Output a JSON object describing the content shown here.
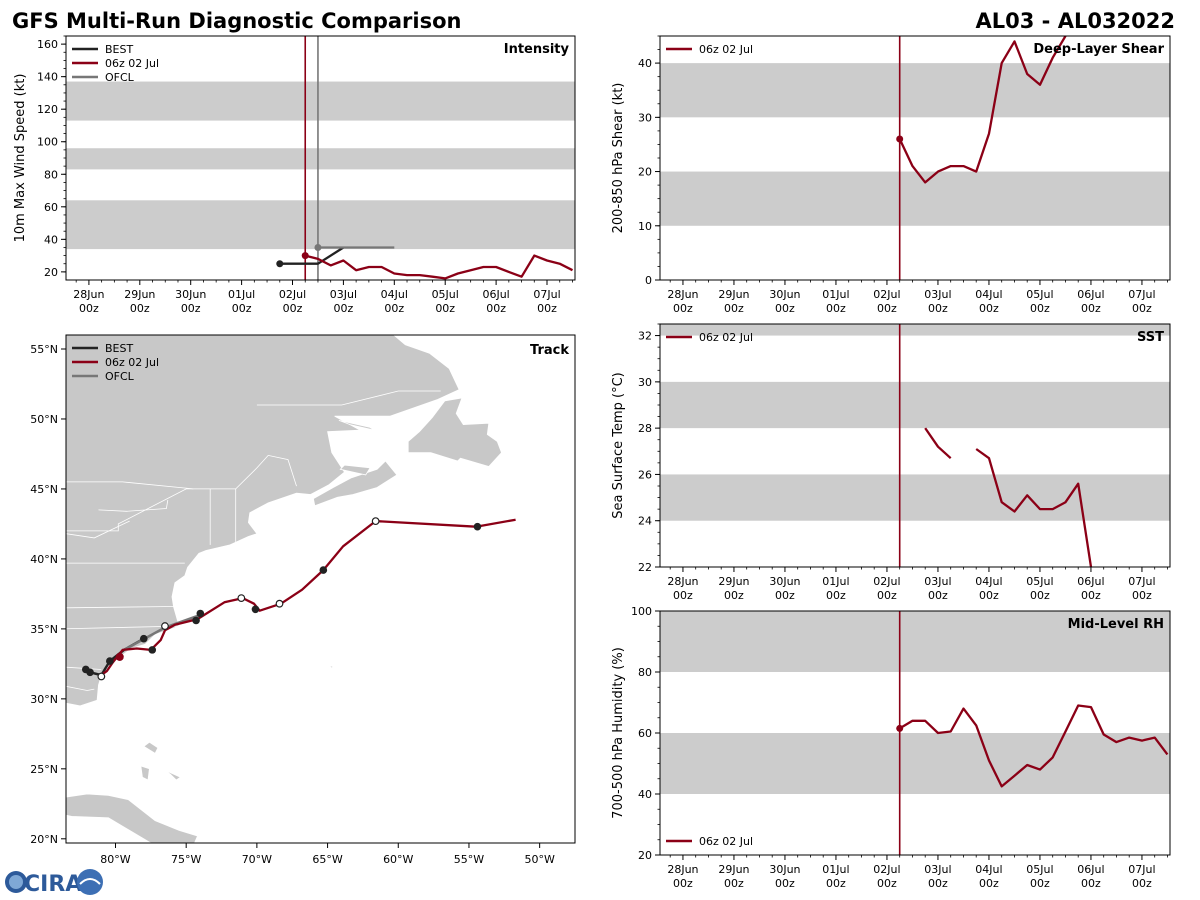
{
  "header": {
    "title": "GFS Multi-Run Diagnostic Comparison",
    "storm_id": "AL03 - AL032022"
  },
  "logo": {
    "text": "CIRA"
  },
  "colors": {
    "best": "#222222",
    "run": "#8b0016",
    "ofcl": "#777777",
    "band": "#cccccc",
    "land": "#c8c8c8"
  },
  "time_ticks": [
    "28Jun",
    "29Jun",
    "30Jun",
    "01Jul",
    "02Jul",
    "03Jul",
    "04Jul",
    "05Jul",
    "06Jul",
    "07Jul"
  ],
  "time_tick_hour": "00z",
  "chart_data": [
    {
      "id": "intensity",
      "type": "line",
      "title": "Intensity",
      "ylabel": "10m Max Wind Speed (kt)",
      "xlabel": "",
      "x_units": "days since 28Jun 00z",
      "xlim": [
        -0.45,
        9.55
      ],
      "ylim": [
        15,
        165
      ],
      "yticks": [
        20,
        40,
        60,
        80,
        100,
        120,
        140,
        160
      ],
      "bands": [
        [
          34,
          64
        ],
        [
          83,
          96
        ],
        [
          113,
          137
        ]
      ],
      "vlines": [
        {
          "x": 4.25,
          "series": "06z 02 Jul"
        },
        {
          "x": 4.5,
          "series": "OFCL"
        }
      ],
      "legend": [
        "BEST",
        "06z 02 Jul",
        "OFCL"
      ],
      "legend_position": "top-left",
      "series": [
        {
          "name": "BEST",
          "x": [
            3.75,
            4.5,
            5.0
          ],
          "y": [
            25,
            25,
            35
          ]
        },
        {
          "name": "OFCL",
          "x": [
            4.5,
            6.0
          ],
          "y": [
            35,
            35
          ]
        },
        {
          "name": "06z 02 Jul",
          "x": [
            4.25,
            4.5,
            4.75,
            5.0,
            5.25,
            5.5,
            5.75,
            6.0,
            6.25,
            6.5,
            6.75,
            7.0,
            7.25,
            7.5,
            7.75,
            8.0,
            8.25,
            8.5,
            8.75,
            9.0,
            9.25,
            9.5
          ],
          "y": [
            30,
            28,
            24,
            27,
            21,
            23,
            23,
            19,
            18,
            18,
            17,
            16,
            19,
            21,
            23,
            23,
            20,
            17,
            30,
            27,
            25,
            21
          ]
        }
      ]
    },
    {
      "id": "shear",
      "type": "line",
      "title": "Deep-Layer Shear",
      "ylabel": "200-850 hPa Shear (kt)",
      "xlabel": "",
      "xlim": [
        -0.45,
        9.55
      ],
      "ylim": [
        0,
        45
      ],
      "yticks": [
        0,
        10,
        20,
        30,
        40
      ],
      "bands": [
        [
          10,
          20
        ],
        [
          30,
          40
        ]
      ],
      "vlines": [
        {
          "x": 4.25,
          "series": "06z 02 Jul"
        }
      ],
      "legend": [
        "06z 02 Jul"
      ],
      "legend_position": "top-left",
      "series": [
        {
          "name": "06z 02 Jul",
          "x": [
            4.25,
            4.5,
            4.75,
            5.0,
            5.25,
            5.5,
            5.75,
            6.0,
            6.25,
            6.5,
            6.75,
            7.0,
            7.25,
            7.5
          ],
          "y": [
            26,
            21,
            18,
            20,
            21,
            21,
            20,
            27,
            40,
            44,
            38,
            36,
            41,
            45
          ]
        }
      ]
    },
    {
      "id": "sst",
      "type": "line",
      "title": "SST",
      "ylabel": "Sea Surface Temp (°C)",
      "xlabel": "",
      "xlim": [
        -0.45,
        9.55
      ],
      "ylim": [
        22,
        32.5
      ],
      "yticks": [
        22,
        24,
        26,
        28,
        30,
        32
      ],
      "bands": [
        [
          24,
          26
        ],
        [
          28,
          30
        ],
        [
          32,
          34
        ]
      ],
      "vlines": [
        {
          "x": 4.25,
          "series": "06z 02 Jul"
        }
      ],
      "legend": [
        "06z 02 Jul"
      ],
      "legend_position": "top-left",
      "series": [
        {
          "name": "06z 02 Jul",
          "segments": [
            {
              "x": [
                4.75,
                5.0,
                5.25
              ],
              "y": [
                28.0,
                27.2,
                26.7
              ]
            },
            {
              "x": [
                5.75,
                6.0,
                6.25,
                6.5,
                6.75,
                7.0,
                7.25,
                7.5,
                7.75,
                8.0
              ],
              "y": [
                27.1,
                26.7,
                24.8,
                24.4,
                25.1,
                24.5,
                24.5,
                24.8,
                25.6,
                22.0
              ]
            }
          ]
        }
      ]
    },
    {
      "id": "rh",
      "type": "line",
      "title": "Mid-Level RH",
      "ylabel": "700-500 hPa Humidity (%)",
      "xlabel": "",
      "xlim": [
        -0.45,
        9.55
      ],
      "ylim": [
        20,
        100
      ],
      "yticks": [
        20,
        40,
        60,
        80,
        100
      ],
      "bands": [
        [
          40,
          60
        ],
        [
          80,
          100
        ]
      ],
      "vlines": [
        {
          "x": 4.25,
          "series": "06z 02 Jul"
        }
      ],
      "legend": [
        "06z 02 Jul"
      ],
      "legend_position": "bottom-left",
      "series": [
        {
          "name": "06z 02 Jul",
          "x": [
            4.25,
            4.5,
            4.75,
            5.0,
            5.25,
            5.5,
            5.75,
            6.0,
            6.25,
            6.5,
            6.75,
            7.0,
            7.25,
            7.5,
            7.75,
            8.0,
            8.25,
            8.5,
            8.75,
            9.0,
            9.25,
            9.5
          ],
          "y": [
            61.5,
            64,
            64,
            60,
            60.5,
            68,
            62.5,
            51,
            42.5,
            46,
            49.5,
            48,
            52,
            60.5,
            69,
            68.5,
            59.5,
            57,
            58.5,
            57.5,
            58.5,
            53
          ]
        }
      ]
    },
    {
      "id": "track",
      "type": "line",
      "title": "Track",
      "xlabel": "",
      "ylabel": "",
      "x_units": "longitude (deg E)",
      "y_units": "latitude (deg N)",
      "xlim": [
        -83.5,
        -47.5
      ],
      "ylim": [
        19.7,
        56.0
      ],
      "xticks": [
        -80,
        -75,
        -70,
        -65,
        -60,
        -55,
        -50
      ],
      "xtick_labels": [
        "80°W",
        "75°W",
        "70°W",
        "65°W",
        "60°W",
        "55°W",
        "50°W"
      ],
      "yticks": [
        20,
        25,
        30,
        35,
        40,
        45,
        50,
        55
      ],
      "ytick_labels": [
        "20°N",
        "25°N",
        "30°N",
        "35°N",
        "40°N",
        "45°N",
        "50°N",
        "55°N"
      ],
      "legend": [
        "BEST",
        "06z 02 Jul",
        "OFCL"
      ],
      "legend_position": "top-left",
      "series": [
        {
          "name": "BEST",
          "lon": [
            -82.1,
            -81.8,
            -81.0,
            -80.4,
            -79.4,
            -78.0
          ],
          "lat": [
            32.1,
            31.9,
            31.7,
            32.7,
            33.5,
            34.3
          ]
        },
        {
          "name": "OFCL",
          "lon": [
            -79.4,
            -76.5,
            -74.0
          ],
          "lat": [
            33.5,
            35.1,
            36.0
          ]
        },
        {
          "name": "06z 02 Jul",
          "lon": [
            -81.0,
            -80.6,
            -80.2,
            -79.5,
            -78.5,
            -77.5,
            -76.8,
            -76.5,
            -75.8,
            -74.2,
            -72.3,
            -71.0,
            -70.2,
            -69.8,
            -68.3,
            -66.8,
            -65.3,
            -63.9,
            -61.6,
            -54.5,
            -51.7
          ],
          "lat": [
            31.7,
            32.0,
            32.6,
            33.5,
            33.6,
            33.5,
            34.2,
            34.9,
            35.3,
            35.7,
            36.9,
            37.2,
            36.8,
            36.3,
            36.8,
            37.8,
            39.2,
            40.9,
            42.7,
            42.3,
            42.8
          ]
        },
        {
          "name": "BEST-markers",
          "lon": [
            -82.1,
            -81.8,
            -80.4,
            -78.0,
            -77.4,
            -74.3,
            -74.0,
            -70.1,
            -65.3,
            -54.4
          ],
          "lat": [
            32.1,
            31.9,
            32.7,
            34.3,
            33.5,
            35.6,
            36.1,
            36.4,
            39.2,
            42.3
          ],
          "marker": "filled"
        },
        {
          "name": "06z-markers",
          "lon": [
            -79.7,
            -81.0,
            -76.5,
            -71.1,
            -68.4,
            -61.6
          ],
          "lat": [
            33.0,
            31.6,
            35.2,
            37.2,
            36.8,
            42.7
          ],
          "marker": "open"
        }
      ]
    }
  ]
}
